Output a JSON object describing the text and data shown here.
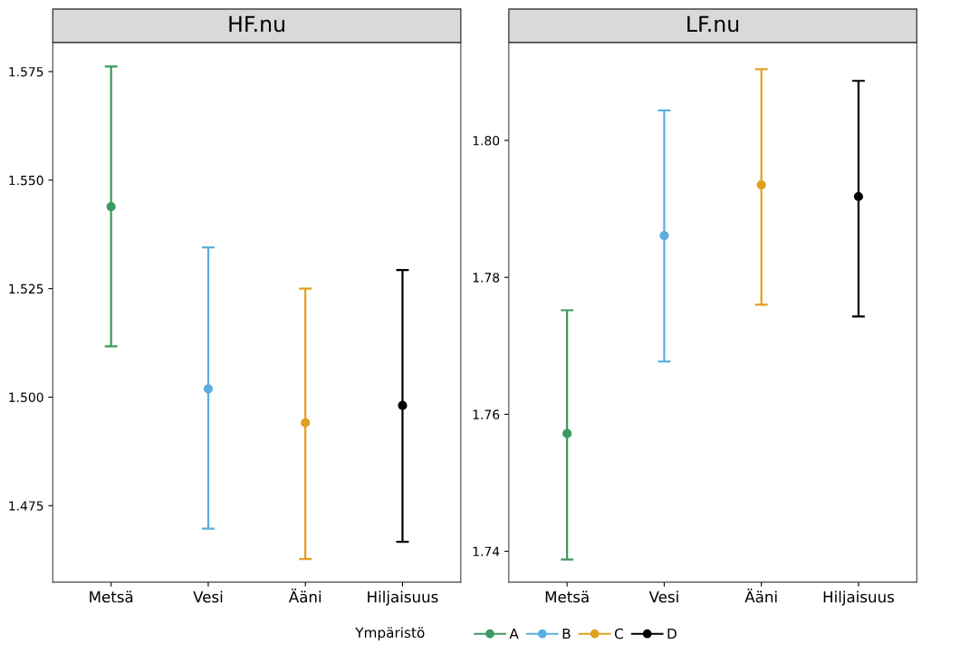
{
  "chart_data": [
    {
      "type": "scatter",
      "title": "HF.nu",
      "categories": [
        "Metsä",
        "Vesi",
        "Ääni",
        "Hiljaisuus"
      ],
      "series": [
        {
          "name": "A",
          "color": "#3b9a5e",
          "values": [
            1.5439,
            null,
            null,
            null
          ],
          "errors": [
            [
              1.5117,
              1.5762
            ],
            null,
            null,
            null
          ]
        },
        {
          "name": "B",
          "color": "#5aaee0",
          "values": [
            null,
            1.5019,
            null,
            null
          ],
          "errors": [
            null,
            [
              1.4697,
              1.5345
            ],
            null,
            null
          ]
        },
        {
          "name": "C",
          "color": "#e0a020",
          "values": [
            null,
            null,
            1.4941,
            null
          ],
          "errors": [
            null,
            null,
            [
              1.4627,
              1.525
            ],
            null
          ]
        },
        {
          "name": "D",
          "color": "#000000",
          "values": [
            null,
            null,
            null,
            1.4981
          ],
          "errors": [
            null,
            null,
            null,
            [
              1.4667,
              1.5293
            ]
          ]
        }
      ],
      "ylim": [
        1.4574,
        1.5817
      ],
      "yticks": [
        {
          "value": 1.475,
          "label": "1.475"
        },
        {
          "value": 1.5,
          "label": "1.500"
        },
        {
          "value": 1.525,
          "label": "1.525"
        },
        {
          "value": 1.55,
          "label": "1.550"
        },
        {
          "value": 1.575,
          "label": "1.575"
        }
      ],
      "marker": "circle",
      "grid": false,
      "legend": "bottom",
      "legend_title": "Ympäristö"
    },
    {
      "type": "scatter",
      "title": "LF.nu",
      "categories": [
        "Metsä",
        "Vesi",
        "Ääni",
        "Hiljaisuus"
      ],
      "series": [
        {
          "color": "#3b9a5e",
          "values": [
            1.7572,
            null,
            null,
            null
          ],
          "errors": [
            [
              1.7388,
              1.7752
            ],
            null,
            null,
            null
          ]
        },
        {
          "color": "#5aaee0",
          "values": [
            null,
            1.7861,
            null,
            null
          ],
          "errors": [
            null,
            [
              1.7677,
              1.8044
            ],
            null,
            null
          ]
        },
        {
          "color": "#e0a020",
          "values": [
            null,
            null,
            1.7935,
            null
          ],
          "errors": [
            null,
            null,
            [
              1.776,
              1.8104
            ],
            null
          ]
        },
        {
          "color": "#000000",
          "values": [
            null,
            null,
            null,
            1.7918
          ],
          "errors": [
            null,
            null,
            null,
            [
              1.7743,
              1.8087
            ]
          ]
        }
      ],
      "ylim": [
        1.7355,
        1.8143
      ],
      "yticks": [
        {
          "value": 1.74,
          "label": "1.74"
        },
        {
          "value": 1.76,
          "label": "1.76"
        },
        {
          "value": 1.78,
          "label": "1.78"
        },
        {
          "value": 1.8,
          "label": "1.80"
        }
      ],
      "marker": "circle",
      "grid": false
    }
  ]
}
